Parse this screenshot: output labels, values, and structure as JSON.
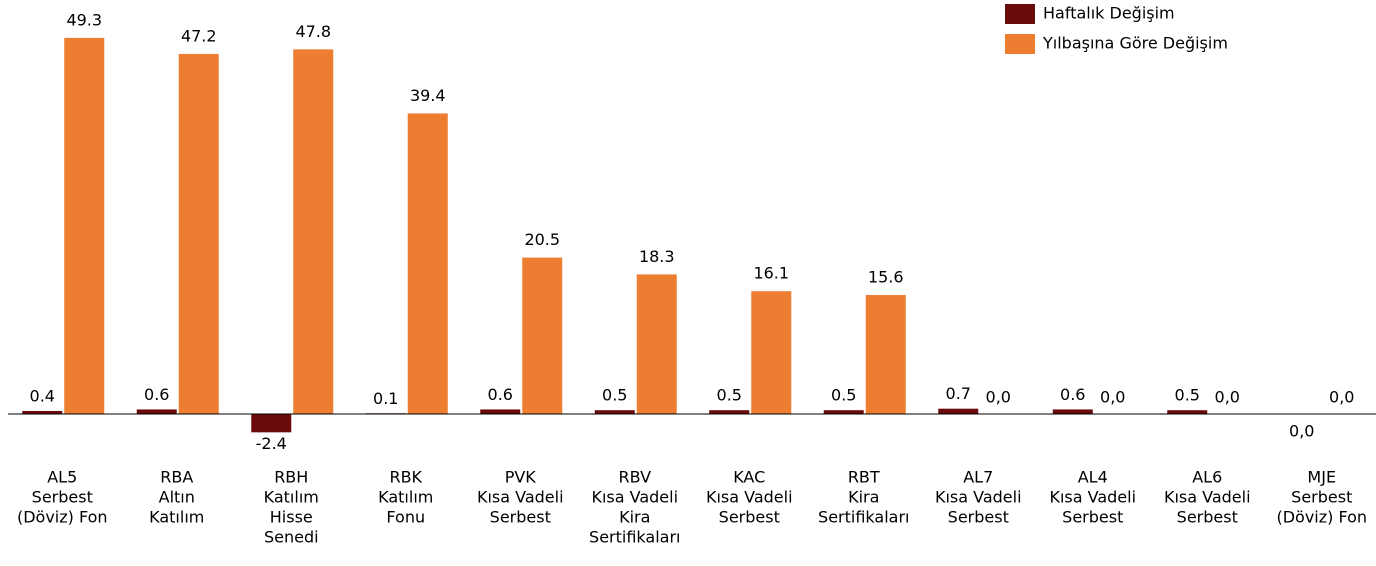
{
  "chart_data": {
    "type": "bar",
    "categories": [
      [
        "AL5",
        "Serbest",
        "(Döviz) Fon"
      ],
      [
        "RBA",
        "Altın",
        "Katılım"
      ],
      [
        "RBH",
        "Katılım",
        "Hisse",
        "Senedi"
      ],
      [
        "RBK",
        "Katılım",
        "Fonu"
      ],
      [
        "PVK",
        "Kısa Vadeli",
        "Serbest"
      ],
      [
        "RBV",
        "Kısa Vadeli",
        "Kira",
        "Sertifikaları"
      ],
      [
        "KAC",
        "Kısa Vadeli",
        "Serbest"
      ],
      [
        "RBT",
        "Kira",
        "Sertifikaları"
      ],
      [
        "AL7",
        "Kısa Vadeli",
        "Serbest"
      ],
      [
        "AL4",
        "Kısa Vadeli",
        "Serbest"
      ],
      [
        "AL6",
        "Kısa Vadeli",
        "Serbest"
      ],
      [
        "MJE",
        "Serbest",
        "(Döviz) Fon"
      ]
    ],
    "series": [
      {
        "name": "Haftalık Değişim",
        "color": "#6b0a0a",
        "values": [
          0.4,
          0.6,
          -2.4,
          0.1,
          0.6,
          0.5,
          0.5,
          0.5,
          0.7,
          0.6,
          0.5,
          0
        ],
        "value_labels": [
          "0.4",
          "0.6",
          "-2.4",
          "0.1",
          "0.6",
          "0.5",
          "0.5",
          "0.5",
          "0.7",
          "0.6",
          "0.5",
          "0,0"
        ]
      },
      {
        "name": "Yılbaşına Göre Değişim",
        "color": "#ed7d31",
        "values": [
          49.3,
          47.2,
          47.8,
          39.4,
          20.5,
          18.3,
          16.1,
          15.6,
          0,
          0,
          0,
          0
        ],
        "value_labels": [
          "49.3",
          "47.2",
          "47.8",
          "39.4",
          "20.5",
          "18.3",
          "16.1",
          "15.6",
          "0,0",
          "0,0",
          "0,0",
          "0,0"
        ]
      }
    ],
    "ylim": [
      -6,
      52
    ],
    "legend": "top-right"
  }
}
